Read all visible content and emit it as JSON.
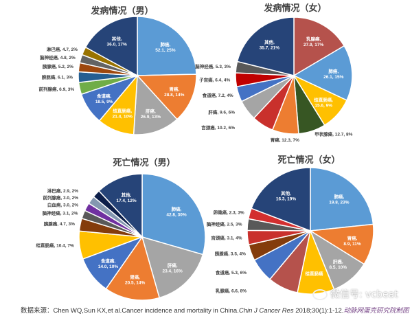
{
  "chart_data": [
    {
      "type": "pie",
      "title": "发病情况（男）",
      "slices": [
        {
          "label": "肺癌",
          "value": 52.1,
          "pct": "25%",
          "color": "#5B9BD5"
        },
        {
          "label": "胃癌",
          "value": 28.8,
          "pct": "14%",
          "color": "#ED7D31"
        },
        {
          "label": "肝癌",
          "value": 26.9,
          "pct": "13%",
          "color": "#A5A5A5"
        },
        {
          "label": "结直肠癌",
          "value": 21.4,
          "pct": "10%",
          "color": "#FFC000"
        },
        {
          "label": "食道癌",
          "value": 18.5,
          "pct": "9%",
          "color": "#4472C4"
        },
        {
          "label": "前列腺癌",
          "value": 6.9,
          "pct": "3%",
          "color": "#70AD47"
        },
        {
          "label": "膀胱癌",
          "value": 6.1,
          "pct": "3%",
          "color": "#255E91"
        },
        {
          "label": "胰腺癌",
          "value": 5.2,
          "pct": "2%",
          "color": "#9E480E"
        },
        {
          "label": "脑神经癌",
          "value": 4.8,
          "pct": "2%",
          "color": "#636363"
        },
        {
          "label": "淋巴癌",
          "value": 4.7,
          "pct": "2%",
          "color": "#997300"
        },
        {
          "label": "其他",
          "value": 36.0,
          "pct": "17%",
          "color": "#264478"
        }
      ]
    },
    {
      "type": "pie",
      "title": "发病情况（女）",
      "slices": [
        {
          "label": "乳腺癌",
          "value": 27.9,
          "pct": "17%",
          "color": "#B5524C"
        },
        {
          "label": "肺癌",
          "value": 26.1,
          "pct": "15%",
          "color": "#5B9BD5"
        },
        {
          "label": "结直肠癌",
          "value": 15.6,
          "pct": "9%",
          "color": "#FFC000"
        },
        {
          "label": "甲状腺癌",
          "value": 12.7,
          "pct": "8%",
          "color": "#375623"
        },
        {
          "label": "胃癌",
          "value": 12.3,
          "pct": "7%",
          "color": "#ED7D31"
        },
        {
          "label": "宫颈癌",
          "value": 10.2,
          "pct": "6%",
          "color": "#C9302C"
        },
        {
          "label": "肝癌",
          "value": 9.6,
          "pct": "6%",
          "color": "#A5A5A5"
        },
        {
          "label": "食道癌",
          "value": 7.2,
          "pct": "4%",
          "color": "#4472C4"
        },
        {
          "label": "子宫癌",
          "value": 6.4,
          "pct": "4%",
          "color": "#C00000"
        },
        {
          "label": "脑神经癌",
          "value": 5.3,
          "pct": "3%",
          "color": "#595959"
        },
        {
          "label": "其他",
          "value": 35.7,
          "pct": "21%",
          "color": "#264478"
        }
      ]
    },
    {
      "type": "pie",
      "title": "死亡情况（男）",
      "slices": [
        {
          "label": "肺癌",
          "value": 42.8,
          "pct": "30%",
          "color": "#5B9BD5"
        },
        {
          "label": "肝癌",
          "value": 23.4,
          "pct": "16%",
          "color": "#A5A5A5"
        },
        {
          "label": "胃癌",
          "value": 20.5,
          "pct": "14%",
          "color": "#ED7D31"
        },
        {
          "label": "食道癌",
          "value": 14.0,
          "pct": "10%",
          "color": "#4472C4"
        },
        {
          "label": "结直肠癌",
          "value": 10.4,
          "pct": "7%",
          "color": "#FFC000"
        },
        {
          "label": "胰腺癌",
          "value": 4.7,
          "pct": "3%",
          "color": "#843C0C"
        },
        {
          "label": "脑神经癌",
          "value": 3.1,
          "pct": "2%",
          "color": "#595959"
        },
        {
          "label": "白血病",
          "value": 3.0,
          "pct": "2%",
          "color": "#7030A0"
        },
        {
          "label": "前列腺癌",
          "value": 3.0,
          "pct": "2%",
          "color": "#8497B0"
        },
        {
          "label": "淋巴癌",
          "value": 2.9,
          "pct": "2%",
          "color": "#0D1F4A"
        },
        {
          "label": "其他",
          "value": 17.4,
          "pct": "12%",
          "color": "#264478"
        }
      ]
    },
    {
      "type": "pie",
      "title": "死亡情况（女）",
      "slices": [
        {
          "label": "肺癌",
          "value": 19.8,
          "pct": "23%",
          "color": "#5B9BD5"
        },
        {
          "label": "胃癌",
          "value": 8.9,
          "pct": "11%",
          "color": "#ED7D31"
        },
        {
          "label": "肝癌",
          "value": 8.5,
          "pct": "10%",
          "color": "#A5A5A5"
        },
        {
          "label": "结直肠癌",
          "value": 8.0,
          "pct": "",
          "color": "#FFC000"
        },
        {
          "label": "乳腺癌",
          "value": 6.6,
          "pct": "8%",
          "color": "#B5524C"
        },
        {
          "label": "食道癌",
          "value": 5.3,
          "pct": "6%",
          "color": "#4472C4"
        },
        {
          "label": "胰腺癌",
          "value": 3.5,
          "pct": "4%",
          "color": "#843C0C"
        },
        {
          "label": "宫颈癌",
          "value": 3.1,
          "pct": "4%",
          "color": "#C9302C"
        },
        {
          "label": "脑神经癌",
          "value": 2.5,
          "pct": "3%",
          "color": "#595959"
        },
        {
          "label": "卵巢癌",
          "value": 2.3,
          "pct": "3%",
          "color": "#D32F2F"
        },
        {
          "label": "其他",
          "value": 16.3,
          "pct": "19%",
          "color": "#264478"
        }
      ]
    }
  ],
  "source": {
    "prefix": "数据来源：Chen WQ,Sun KX,et al.Cancer incidence and mortality in China.",
    "journal": "Chin J Cancer Res",
    "citation": " 2018;30(1):1-12.",
    "credit": "动脉网蛋壳研究院制图"
  },
  "watermark": "微信号: vcbeat"
}
